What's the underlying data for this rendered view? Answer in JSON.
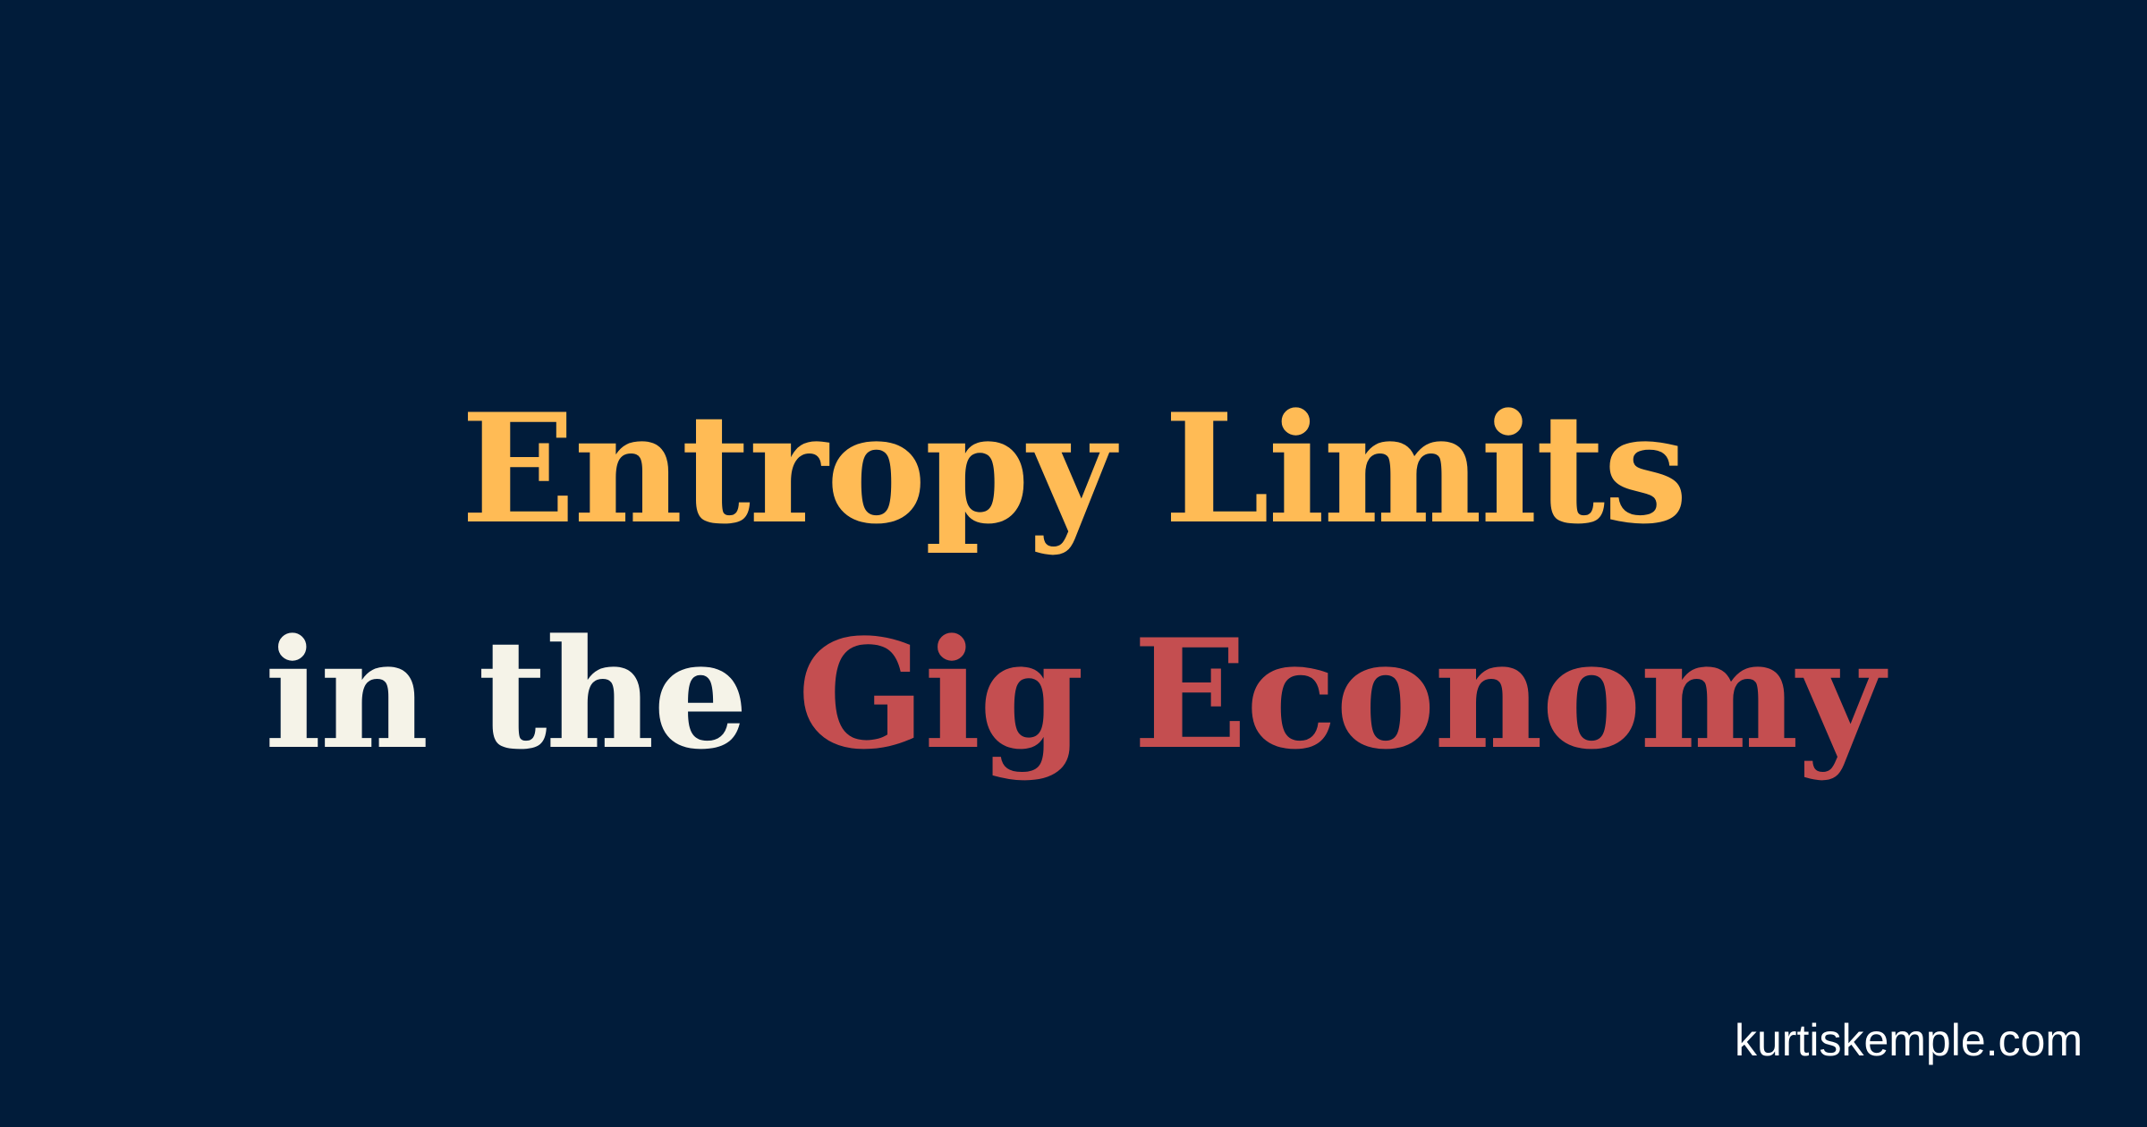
{
  "title": {
    "line1": "Entropy Limits",
    "line2_part1": "in the",
    "line2_part2": "Gig Economy"
  },
  "footer": {
    "url": "kurtiskemple.com"
  },
  "colors": {
    "background": "#011c3a",
    "title_line1": "#ffbb55",
    "title_line2_part1": "#f5f3e8",
    "title_line2_part2": "#c44e50",
    "footer_text": "#ffffff"
  }
}
